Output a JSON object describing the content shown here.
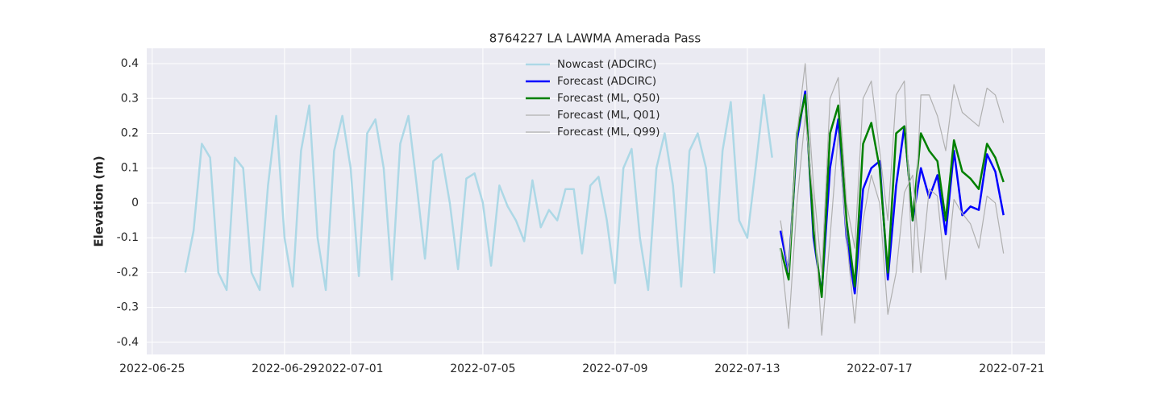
{
  "chart_data": {
    "type": "line",
    "title": "8764227 LA LAWMA Amerada Pass",
    "y_label": "Elevation (m)",
    "xlim": [
      "2022-06-24 20:00",
      "2022-07-22 00:00"
    ],
    "xticks": [
      "2022-06-25",
      "2022-06-29",
      "2022-07-01",
      "2022-07-05",
      "2022-07-09",
      "2022-07-13",
      "2022-07-17",
      "2022-07-21"
    ],
    "ylim": [
      -0.435,
      0.444
    ],
    "yticks": [
      -0.4,
      -0.3,
      -0.2,
      -0.1,
      0.0,
      0.1,
      0.2,
      0.3,
      0.4
    ],
    "grid": true,
    "legend": "upper center",
    "series": [
      {
        "name": "Nowcast (ADCIRC)",
        "color": "#add8e6",
        "width": 2.5,
        "x": [
          "2022-06-26 00:00",
          "2022-06-26 06:00",
          "2022-06-26 12:00",
          "2022-06-26 18:00",
          "2022-06-27 00:00",
          "2022-06-27 06:00",
          "2022-06-27 12:00",
          "2022-06-27 18:00",
          "2022-06-28 00:00",
          "2022-06-28 06:00",
          "2022-06-28 12:00",
          "2022-06-28 18:00",
          "2022-06-29 00:00",
          "2022-06-29 06:00",
          "2022-06-29 12:00",
          "2022-06-29 18:00",
          "2022-06-30 00:00",
          "2022-06-30 06:00",
          "2022-06-30 12:00",
          "2022-06-30 18:00",
          "2022-07-01 00:00",
          "2022-07-01 06:00",
          "2022-07-01 12:00",
          "2022-07-01 18:00",
          "2022-07-02 00:00",
          "2022-07-02 06:00",
          "2022-07-02 12:00",
          "2022-07-02 18:00",
          "2022-07-03 00:00",
          "2022-07-03 06:00",
          "2022-07-03 12:00",
          "2022-07-03 18:00",
          "2022-07-04 00:00",
          "2022-07-04 06:00",
          "2022-07-04 12:00",
          "2022-07-04 18:00",
          "2022-07-05 00:00",
          "2022-07-05 06:00",
          "2022-07-05 12:00",
          "2022-07-05 18:00",
          "2022-07-06 00:00",
          "2022-07-06 06:00",
          "2022-07-06 12:00",
          "2022-07-06 18:00",
          "2022-07-07 00:00",
          "2022-07-07 06:00",
          "2022-07-07 12:00",
          "2022-07-07 18:00",
          "2022-07-08 00:00",
          "2022-07-08 06:00",
          "2022-07-08 12:00",
          "2022-07-08 18:00",
          "2022-07-09 00:00",
          "2022-07-09 06:00",
          "2022-07-09 12:00",
          "2022-07-09 18:00",
          "2022-07-10 00:00",
          "2022-07-10 06:00",
          "2022-07-10 12:00",
          "2022-07-10 18:00",
          "2022-07-11 00:00",
          "2022-07-11 06:00",
          "2022-07-11 12:00",
          "2022-07-11 18:00",
          "2022-07-12 00:00",
          "2022-07-12 06:00",
          "2022-07-12 12:00",
          "2022-07-12 18:00",
          "2022-07-13 00:00",
          "2022-07-13 06:00",
          "2022-07-13 12:00",
          "2022-07-13 18:00"
        ],
        "values": [
          -0.2,
          -0.08,
          0.17,
          0.13,
          -0.2,
          -0.25,
          0.13,
          0.1,
          -0.2,
          -0.25,
          0.05,
          0.25,
          -0.1,
          -0.24,
          0.15,
          0.28,
          -0.1,
          -0.25,
          0.15,
          0.25,
          0.1,
          -0.21,
          0.2,
          0.24,
          0.1,
          -0.22,
          0.17,
          0.25,
          0.05,
          -0.16,
          0.12,
          0.14,
          0.0,
          -0.19,
          0.07,
          0.085,
          0.0,
          -0.18,
          0.05,
          -0.01,
          -0.05,
          -0.11,
          0.065,
          -0.07,
          -0.02,
          -0.05,
          0.04,
          0.04,
          -0.145,
          0.05,
          0.075,
          -0.05,
          -0.23,
          0.1,
          0.155,
          -0.1,
          -0.25,
          0.1,
          0.2,
          0.05,
          -0.24,
          0.15,
          0.2,
          0.1,
          -0.2,
          0.15,
          0.29,
          -0.05,
          -0.1,
          0.1,
          0.31,
          0.13
        ]
      },
      {
        "name": "Forecast (ADCIRC)",
        "color": "#0000ff",
        "width": 2.5,
        "x": [
          "2022-07-14 00:00",
          "2022-07-14 06:00",
          "2022-07-14 12:00",
          "2022-07-14 18:00",
          "2022-07-15 00:00",
          "2022-07-15 06:00",
          "2022-07-15 12:00",
          "2022-07-15 18:00",
          "2022-07-16 00:00",
          "2022-07-16 06:00",
          "2022-07-16 12:00",
          "2022-07-16 18:00",
          "2022-07-17 00:00",
          "2022-07-17 06:00",
          "2022-07-17 12:00",
          "2022-07-17 18:00",
          "2022-07-18 00:00",
          "2022-07-18 06:00",
          "2022-07-18 12:00",
          "2022-07-18 18:00",
          "2022-07-19 00:00",
          "2022-07-19 06:00",
          "2022-07-19 12:00",
          "2022-07-19 18:00",
          "2022-07-20 00:00",
          "2022-07-20 06:00",
          "2022-07-20 12:00",
          "2022-07-20 18:00"
        ],
        "values": [
          -0.08,
          -0.2,
          0.18,
          0.32,
          -0.1,
          -0.26,
          0.1,
          0.24,
          -0.1,
          -0.26,
          0.04,
          0.1,
          0.12,
          -0.22,
          0.05,
          0.22,
          -0.05,
          0.1,
          0.015,
          0.08,
          -0.09,
          0.15,
          -0.035,
          -0.01,
          -0.02,
          0.14,
          0.09,
          -0.035
        ]
      },
      {
        "name": "Forecast (ML, Q50)",
        "color": "#008000",
        "width": 2.5,
        "x": [
          "2022-07-14 00:00",
          "2022-07-14 06:00",
          "2022-07-14 12:00",
          "2022-07-14 18:00",
          "2022-07-15 00:00",
          "2022-07-15 06:00",
          "2022-07-15 12:00",
          "2022-07-15 18:00",
          "2022-07-16 00:00",
          "2022-07-16 06:00",
          "2022-07-16 12:00",
          "2022-07-16 18:00",
          "2022-07-17 00:00",
          "2022-07-17 06:00",
          "2022-07-17 12:00",
          "2022-07-17 18:00",
          "2022-07-18 00:00",
          "2022-07-18 06:00",
          "2022-07-18 12:00",
          "2022-07-18 18:00",
          "2022-07-19 00:00",
          "2022-07-19 06:00",
          "2022-07-19 12:00",
          "2022-07-19 18:00",
          "2022-07-20 00:00",
          "2022-07-20 06:00",
          "2022-07-20 12:00",
          "2022-07-20 18:00"
        ],
        "values": [
          -0.13,
          -0.22,
          0.2,
          0.31,
          -0.08,
          -0.27,
          0.2,
          0.28,
          -0.05,
          -0.24,
          0.17,
          0.23,
          0.1,
          -0.2,
          0.2,
          0.22,
          -0.05,
          0.2,
          0.15,
          0.12,
          -0.05,
          0.18,
          0.09,
          0.07,
          0.04,
          0.17,
          0.13,
          0.06
        ]
      },
      {
        "name": "Forecast (ML, Q01)",
        "color": "#b0b0b0",
        "width": 1.2,
        "x": [
          "2022-07-14 00:00",
          "2022-07-14 06:00",
          "2022-07-14 12:00",
          "2022-07-14 18:00",
          "2022-07-15 00:00",
          "2022-07-15 06:00",
          "2022-07-15 12:00",
          "2022-07-15 18:00",
          "2022-07-16 00:00",
          "2022-07-16 06:00",
          "2022-07-16 12:00",
          "2022-07-16 18:00",
          "2022-07-17 00:00",
          "2022-07-17 06:00",
          "2022-07-17 12:00",
          "2022-07-17 18:00",
          "2022-07-18 00:00",
          "2022-07-18 06:00",
          "2022-07-18 12:00",
          "2022-07-18 18:00",
          "2022-07-19 00:00",
          "2022-07-19 06:00",
          "2022-07-19 12:00",
          "2022-07-19 18:00",
          "2022-07-20 00:00",
          "2022-07-20 06:00",
          "2022-07-20 12:00",
          "2022-07-20 18:00"
        ],
        "values": [
          -0.13,
          -0.36,
          0.0,
          0.25,
          0.0,
          -0.38,
          -0.1,
          0.2,
          -0.1,
          -0.345,
          -0.05,
          0.08,
          0.0,
          -0.32,
          -0.2,
          0.03,
          0.08,
          -0.2,
          0.04,
          0.02,
          -0.22,
          0.01,
          -0.03,
          -0.06,
          -0.13,
          0.02,
          0.0,
          -0.145
        ]
      },
      {
        "name": "Forecast (ML, Q99)",
        "color": "#b0b0b0",
        "width": 1.2,
        "x": [
          "2022-07-14 00:00",
          "2022-07-14 06:00",
          "2022-07-14 12:00",
          "2022-07-14 18:00",
          "2022-07-15 00:00",
          "2022-07-15 06:00",
          "2022-07-15 12:00",
          "2022-07-15 18:00",
          "2022-07-16 00:00",
          "2022-07-16 06:00",
          "2022-07-16 12:00",
          "2022-07-16 18:00",
          "2022-07-17 00:00",
          "2022-07-17 06:00",
          "2022-07-17 12:00",
          "2022-07-17 18:00",
          "2022-07-18 00:00",
          "2022-07-18 06:00",
          "2022-07-18 12:00",
          "2022-07-18 18:00",
          "2022-07-19 00:00",
          "2022-07-19 06:00",
          "2022-07-19 12:00",
          "2022-07-19 18:00",
          "2022-07-20 00:00",
          "2022-07-20 06:00",
          "2022-07-20 12:00",
          "2022-07-20 18:00"
        ],
        "values": [
          -0.05,
          -0.2,
          0.2,
          0.4,
          0.05,
          -0.2,
          0.3,
          0.36,
          0.0,
          -0.13,
          0.3,
          0.35,
          0.15,
          -0.05,
          0.31,
          0.35,
          -0.2,
          0.31,
          0.31,
          0.25,
          0.15,
          0.34,
          0.26,
          0.24,
          0.22,
          0.33,
          0.31,
          0.23
        ]
      }
    ]
  }
}
